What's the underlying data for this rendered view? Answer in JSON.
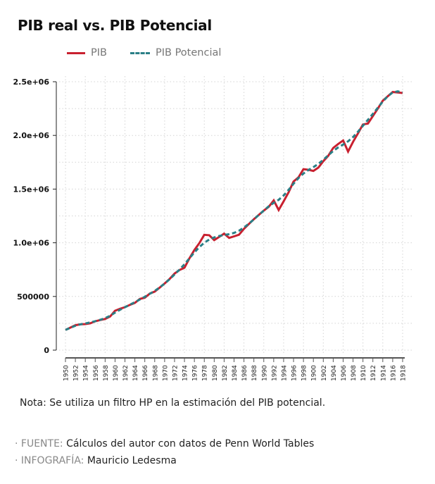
{
  "title": "PIB real vs. PIB Potencial",
  "legend": [
    {
      "label": "PIB",
      "color": "#c8202f",
      "style": "solid"
    },
    {
      "label": "PIB Potencial",
      "color": "#2a7f86",
      "style": "dashed"
    }
  ],
  "note": "Nota: Se utiliza un filtro HP en la estimación del PIB potencial.",
  "source": {
    "key": "· FUENTE:",
    "value": " Cálculos del autor con datos de Penn World Tables"
  },
  "credit": {
    "key": "· INFOGRAFÍA:",
    "value": " Mauricio Ledesma"
  },
  "chart_data": {
    "type": "line",
    "title": "PIB real vs. PIB Potencial",
    "xlabel": "",
    "ylabel": "",
    "x_start": 1950,
    "x_end": 2018,
    "xlim": [
      1950,
      2018
    ],
    "ylim": [
      0,
      2500000
    ],
    "grid": true,
    "legend_position": "top-left",
    "y_ticks": [
      {
        "value": 0,
        "label": "0"
      },
      {
        "value": 500000,
        "label": "500000"
      },
      {
        "value": 1000000,
        "label": "1.0e+06"
      },
      {
        "value": 1500000,
        "label": "1.5e+06"
      },
      {
        "value": 2000000,
        "label": "2.0e+06"
      },
      {
        "value": 2500000,
        "label": "2.5e+06"
      }
    ],
    "x_tick_labels": [
      "1950",
      "1952",
      "1954",
      "1956",
      "1958",
      "1960",
      "1962",
      "1964",
      "1966",
      "1968",
      "1970",
      "1972",
      "1974",
      "1976",
      "1978",
      "1980",
      "1982",
      "1984",
      "1986",
      "1988",
      "1990",
      "1992",
      "1994",
      "1996",
      "1998",
      "1900",
      "1902",
      "1904",
      "1906",
      "1908",
      "1910",
      "1912",
      "1914",
      "1916",
      "1918"
    ],
    "series": [
      {
        "name": "PIB",
        "color": "#c8202f",
        "values": [
          188000,
          210000,
          232000,
          240000,
          243000,
          250000,
          269000,
          280000,
          291000,
          313000,
          367000,
          385000,
          400000,
          422000,
          440000,
          477000,
          488000,
          527000,
          545000,
          582000,
          621000,
          663000,
          713000,
          746000,
          768000,
          855000,
          932000,
          997000,
          1074000,
          1070000,
          1025000,
          1055000,
          1085000,
          1045000,
          1060000,
          1075000,
          1130000,
          1175000,
          1220000,
          1260000,
          1300000,
          1335000,
          1395000,
          1305000,
          1385000,
          1470000,
          1570000,
          1610000,
          1686000,
          1680000,
          1669000,
          1700000,
          1760000,
          1810000,
          1883000,
          1920000,
          1953000,
          1850000,
          1940000,
          2020000,
          2102000,
          2110000,
          2180000,
          2250000,
          2323000,
          2365000,
          2404000,
          2400000,
          2395000
        ]
      },
      {
        "name": "PIB Potencial",
        "color": "#2a7f86",
        "values": [
          188000,
          208000,
          227000,
          240000,
          249000,
          258000,
          270000,
          283000,
          298000,
          320000,
          350000,
          376000,
          400000,
          423000,
          446000,
          472000,
          497000,
          525000,
          552000,
          584000,
          620000,
          660000,
          705000,
          750000,
          800000,
          855000,
          910000,
          960000,
          1000000,
          1030000,
          1050000,
          1063000,
          1072000,
          1080000,
          1092000,
          1112000,
          1142000,
          1178000,
          1218000,
          1260000,
          1300000,
          1340000,
          1372000,
          1400000,
          1440000,
          1492000,
          1550000,
          1603000,
          1645000,
          1678000,
          1705000,
          1735000,
          1772000,
          1815000,
          1855000,
          1888000,
          1915000,
          1945000,
          1985000,
          2035000,
          2090000,
          2145000,
          2200000,
          2258000,
          2315000,
          2365000,
          2400000,
          2410000,
          2400000
        ]
      }
    ]
  }
}
